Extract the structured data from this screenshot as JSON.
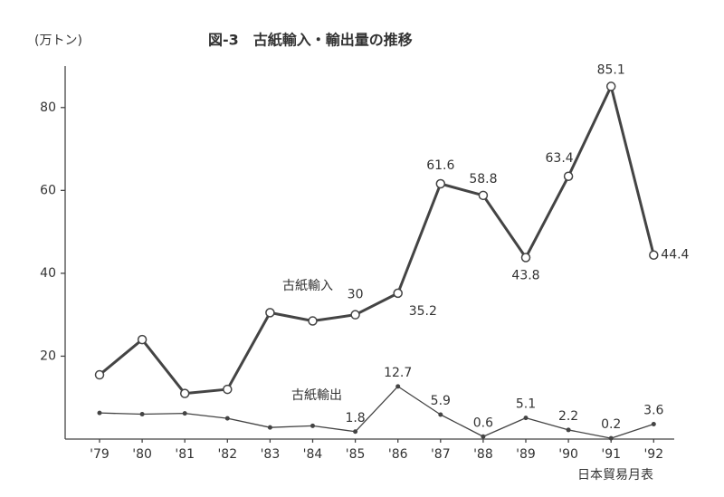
{
  "chart_data": {
    "type": "line",
    "title": "図-3　古紙輸入・輸出量の推移",
    "y_label": "(万トン)",
    "source": "日本貿易月表",
    "categories": [
      "'79",
      "'80",
      "'81",
      "'82",
      "'83",
      "'84",
      "'85",
      "'86",
      "'87",
      "'88",
      "'89",
      "'90",
      "'91",
      "'92"
    ],
    "series": [
      {
        "name": "古紙輸入",
        "color": "#444444",
        "values": [
          15.5,
          24,
          11,
          12,
          30.5,
          28.5,
          30,
          35.2,
          61.6,
          58.8,
          43.8,
          63.4,
          85.1,
          44.4
        ],
        "value_labels": [
          null,
          null,
          null,
          null,
          null,
          null,
          "30",
          "35.2",
          "61.6",
          "58.8",
          "43.8",
          "63.4",
          "85.1",
          "44.4"
        ]
      },
      {
        "name": "古紙輸出",
        "color": "#444444",
        "values": [
          6.3,
          6,
          6.2,
          5,
          2.8,
          3.2,
          1.8,
          12.7,
          5.9,
          0.6,
          5.1,
          2.2,
          0.2,
          3.6
        ],
        "value_labels": [
          null,
          null,
          null,
          null,
          null,
          null,
          "1.8",
          "12.7",
          "5.9",
          "0.6",
          "5.1",
          "2.2",
          "0.2",
          "3.6"
        ]
      }
    ],
    "ylim": [
      0,
      90
    ],
    "yticks": [
      20,
      40,
      60,
      80
    ],
    "grid": false
  }
}
